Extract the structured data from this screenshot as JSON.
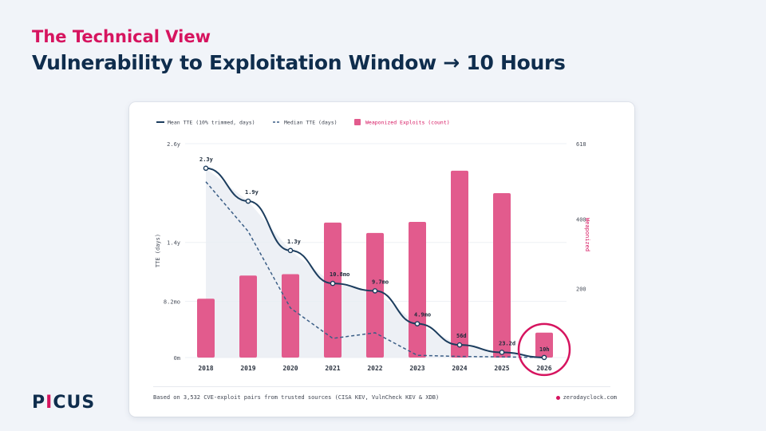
{
  "header": {
    "kicker": "The Technical View",
    "title": "Vulnerability to Exploitation Window → 10 Hours"
  },
  "logo": {
    "text_before": "P",
    "text_accent": "I",
    "text_after": "CUS"
  },
  "card": {
    "footnote": "Based on 3,532 CVE-exploit pairs from trusted sources (CISA KEV, VulnCheck KEV & XDB)",
    "source": "zerodayclock.com"
  },
  "colors": {
    "mean_line": "#1c3d5e",
    "median_line": "#3b5e86",
    "bars": "#e25b8d",
    "highlight_ring": "#d6145f",
    "area_fill": "#e9ecf3"
  },
  "chart_data": {
    "type": "bar",
    "categories": [
      "2018",
      "2019",
      "2020",
      "2021",
      "2022",
      "2023",
      "2024",
      "2025",
      "2026"
    ],
    "legend": [
      {
        "label": "Mean TTE  (10% trimmed, days)",
        "style": "solid-line"
      },
      {
        "label": "Median TTE  (days)",
        "style": "dashed-line"
      },
      {
        "label": "Weaponized Exploits  (count)",
        "style": "bar"
      }
    ],
    "legend_placement": "top-left",
    "y_left": {
      "label": "TTE (days)",
      "ticks": [
        "2.6y",
        "1.4y",
        "8.2mo",
        "0m"
      ],
      "tick_values_days": [
        949,
        511,
        249,
        0
      ],
      "range_days": [
        0,
        949
      ]
    },
    "y_right": {
      "label": "Weaponized",
      "ticks": [
        "618",
        "400",
        "200"
      ],
      "tick_values": [
        618,
        400,
        200
      ],
      "range": [
        0,
        618
      ]
    },
    "series": [
      {
        "name": "Weaponized Exploits  (count)",
        "type": "bar",
        "values": [
          170,
          237,
          241,
          390,
          360,
          392,
          540,
          475,
          72
        ]
      },
      {
        "name": "Mean TTE  (10% trimmed, days)",
        "type": "line",
        "values_days": [
          840,
          694,
          475,
          329,
          296,
          150,
          56,
          23.2,
          0.42
        ],
        "labels": [
          "2.3y",
          "1.9y",
          "1.3y",
          "10.8mo",
          "9.7mo",
          "4.9mo",
          "56d",
          "23.2d",
          "10h"
        ]
      },
      {
        "name": "Median TTE  (days)",
        "type": "line",
        "values_days": [
          780,
          560,
          220,
          85,
          110,
          10,
          5,
          3,
          0.42
        ]
      }
    ],
    "highlight": {
      "category": "2026",
      "label": "10h"
    },
    "grid": "horizontal"
  }
}
